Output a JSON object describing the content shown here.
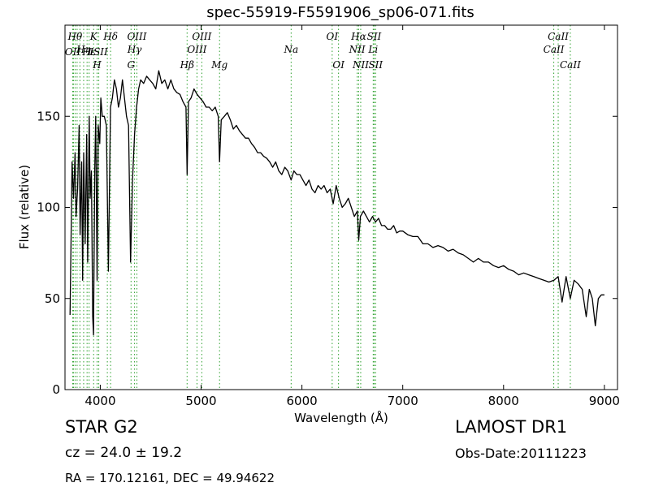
{
  "chart_data": {
    "type": "line",
    "title": "spec-55919-F5591906_sp06-071.fits",
    "xlabel": "Wavelength (Å)",
    "ylabel": "Flux (relative)",
    "xlim": [
      3650,
      9130
    ],
    "ylim": [
      0,
      200
    ],
    "xticks": [
      4000,
      5000,
      6000,
      7000,
      8000,
      9000
    ],
    "yticks": [
      0,
      50,
      100,
      150
    ],
    "grid": false,
    "line_color": "#000000",
    "marker_color": "#2ca02c",
    "series": [
      {
        "x": [
          3700,
          3710,
          3720,
          3735,
          3750,
          3760,
          3775,
          3790,
          3800,
          3815,
          3825,
          3835,
          3850,
          3865,
          3875,
          3890,
          3900,
          3912,
          3925,
          3933,
          3945,
          3955,
          3968,
          3980,
          3995,
          4005,
          4020,
          4040,
          4060,
          4080,
          4101,
          4120,
          4140,
          4160,
          4180,
          4200,
          4220,
          4240,
          4260,
          4280,
          4300,
          4320,
          4340,
          4360,
          4380,
          4400,
          4430,
          4460,
          4490,
          4520,
          4550,
          4580,
          4610,
          4640,
          4670,
          4700,
          4730,
          4760,
          4790,
          4820,
          4850,
          4861,
          4875,
          4900,
          4930,
          4960,
          4990,
          5020,
          5050,
          5080,
          5110,
          5140,
          5170,
          5183,
          5200,
          5230,
          5260,
          5290,
          5320,
          5350,
          5380,
          5410,
          5440,
          5470,
          5500,
          5530,
          5560,
          5590,
          5620,
          5650,
          5680,
          5710,
          5740,
          5770,
          5800,
          5830,
          5860,
          5893,
          5920,
          5950,
          5980,
          6010,
          6040,
          6070,
          6100,
          6130,
          6160,
          6190,
          6220,
          6250,
          6280,
          6310,
          6340,
          6370,
          6400,
          6430,
          6460,
          6490,
          6520,
          6550,
          6563,
          6580,
          6610,
          6640,
          6670,
          6700,
          6730,
          6760,
          6790,
          6820,
          6850,
          6880,
          6910,
          6940,
          6970,
          7000,
          7050,
          7100,
          7150,
          7200,
          7250,
          7300,
          7350,
          7400,
          7450,
          7500,
          7550,
          7600,
          7650,
          7700,
          7750,
          7800,
          7850,
          7900,
          7950,
          8000,
          8050,
          8100,
          8150,
          8200,
          8250,
          8300,
          8350,
          8400,
          8450,
          8500,
          8542,
          8580,
          8620,
          8662,
          8700,
          8740,
          8780,
          8820,
          8850,
          8880,
          8910,
          8940,
          8970,
          9000
        ],
        "y": [
          41,
          80,
          125,
          105,
          130,
          95,
          110,
          145,
          85,
          125,
          60,
          130,
          80,
          140,
          70,
          150,
          105,
          120,
          40,
          30,
          120,
          150,
          60,
          145,
          135,
          160,
          150,
          150,
          145,
          65,
          155,
          160,
          170,
          165,
          155,
          160,
          170,
          160,
          150,
          145,
          70,
          115,
          140,
          155,
          165,
          170,
          168,
          172,
          170,
          168,
          165,
          175,
          168,
          170,
          165,
          170,
          165,
          163,
          162,
          158,
          155,
          118,
          158,
          160,
          165,
          162,
          160,
          158,
          155,
          155,
          153,
          155,
          150,
          125,
          148,
          150,
          152,
          148,
          143,
          145,
          142,
          140,
          138,
          138,
          135,
          133,
          130,
          130,
          128,
          127,
          125,
          122,
          125,
          120,
          118,
          122,
          120,
          115,
          120,
          118,
          118,
          115,
          112,
          115,
          110,
          108,
          112,
          110,
          112,
          108,
          110,
          102,
          112,
          105,
          100,
          102,
          105,
          100,
          95,
          98,
          82,
          95,
          98,
          95,
          92,
          95,
          92,
          94,
          90,
          90,
          88,
          88,
          90,
          86,
          87,
          87,
          85,
          84,
          84,
          80,
          80,
          78,
          79,
          78,
          76,
          77,
          75,
          74,
          72,
          70,
          72,
          70,
          70,
          68,
          67,
          68,
          66,
          65,
          63,
          64,
          63,
          62,
          61,
          60,
          59,
          60,
          62,
          48,
          62,
          50,
          60,
          58,
          55,
          40,
          55,
          50,
          35,
          50,
          52,
          52
        ]
      }
    ],
    "line_markers": [
      {
        "wavelength": 3727,
        "label": "OII",
        "row": 2
      },
      {
        "wavelength": 3734,
        "label": "",
        "row": 0
      },
      {
        "wavelength": 3750,
        "label": "Hθ",
        "row": 1
      },
      {
        "wavelength": 3770,
        "label": "",
        "row": 0
      },
      {
        "wavelength": 3798,
        "label": "",
        "row": 0
      },
      {
        "wavelength": 3835,
        "label": "Hη",
        "row": 3
      },
      {
        "wavelength": 3869,
        "label": "",
        "row": 0
      },
      {
        "wavelength": 3889,
        "label": "Hε",
        "row": 2
      },
      {
        "wavelength": 3934,
        "label": "K",
        "row": 1
      },
      {
        "wavelength": 3968,
        "label": "H",
        "row": 4
      },
      {
        "wavelength": 3985,
        "label": "ISII",
        "row": 2
      },
      {
        "wavelength": 4070,
        "label": "",
        "row": 0
      },
      {
        "wavelength": 4102,
        "label": "Hδ",
        "row": 1
      },
      {
        "wavelength": 4305,
        "label": "G",
        "row": 4
      },
      {
        "wavelength": 4340,
        "label": "Hγ",
        "row": 3
      },
      {
        "wavelength": 4363,
        "label": "OIII",
        "row": 1
      },
      {
        "wavelength": 4861,
        "label": "Hβ",
        "row": 4
      },
      {
        "wavelength": 4959,
        "label": "OIII",
        "row": 3
      },
      {
        "wavelength": 5007,
        "label": "OIII",
        "row": 1
      },
      {
        "wavelength": 5183,
        "label": "Mg",
        "row": 4
      },
      {
        "wavelength": 5893,
        "label": "Na",
        "row": 3
      },
      {
        "wavelength": 6300,
        "label": "OI",
        "row": 1
      },
      {
        "wavelength": 6363,
        "label": "OI",
        "row": 4
      },
      {
        "wavelength": 6548,
        "label": "NII",
        "row": 3
      },
      {
        "wavelength": 6563,
        "label": "Hα",
        "row": 1
      },
      {
        "wavelength": 6583,
        "label": "NII",
        "row": 4
      },
      {
        "wavelength": 6707,
        "label": "Li",
        "row": 3
      },
      {
        "wavelength": 6716,
        "label": "SII",
        "row": 1
      },
      {
        "wavelength": 6731,
        "label": "SII",
        "row": 4
      },
      {
        "wavelength": 8498,
        "label": "CaII",
        "row": 3
      },
      {
        "wavelength": 8542,
        "label": "CaII",
        "row": 1
      },
      {
        "wavelength": 8662,
        "label": "CaII",
        "row": 4
      }
    ]
  },
  "info": {
    "object_class": "STAR   G2",
    "survey": "LAMOST DR1",
    "cz": "cz = 24.0 ± 19.2",
    "obs_date": "Obs-Date:20111223",
    "radec": "RA = 170.12161, DEC = 49.94622"
  }
}
